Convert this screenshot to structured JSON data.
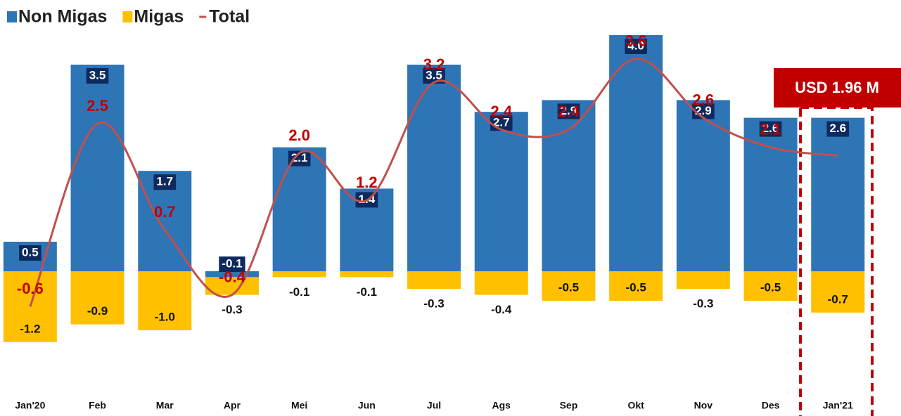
{
  "chart_data": {
    "type": "bar",
    "categories": [
      "Jan'20",
      "Feb",
      "Mar",
      "Apr",
      "Mei",
      "Jun",
      "Jul",
      "Ags",
      "Sep",
      "Okt",
      "Nov",
      "Des",
      "Jan'21"
    ],
    "series": [
      {
        "name": "Non Migas",
        "color": "#2e75b6",
        "kind": "bar",
        "values": [
          0.5,
          3.5,
          1.7,
          -0.1,
          2.1,
          1.4,
          3.5,
          2.7,
          2.9,
          4.0,
          2.9,
          2.6,
          2.6
        ],
        "value_labels": [
          "0.5",
          "3.5",
          "1.7",
          "-0.1",
          "2.1",
          "1.4",
          "3.5",
          "2.7",
          "2.9",
          "4.0",
          "2.9",
          "2.6",
          "2.6"
        ]
      },
      {
        "name": "Migas",
        "color": "#ffc000",
        "kind": "bar",
        "values": [
          -1.2,
          -0.9,
          -1.0,
          -0.3,
          -0.1,
          -0.1,
          -0.3,
          -0.4,
          -0.5,
          -0.5,
          -0.3,
          -0.5,
          -0.7
        ],
        "value_labels": [
          "-1.2",
          "-0.9",
          "-1.0",
          "-0.3",
          "-0.1",
          "-0.1",
          "-0.3",
          "-0.4",
          "-0.5",
          "-0.5",
          "-0.3",
          "-0.5",
          "-0.7"
        ]
      },
      {
        "name": "Total",
        "color": "#c0504d",
        "kind": "line",
        "values": [
          -0.6,
          2.5,
          0.7,
          -0.4,
          2.0,
          1.2,
          3.2,
          2.4,
          2.4,
          3.6,
          2.6,
          2.1,
          1.96
        ],
        "value_labels": [
          "-0.6",
          "2.5",
          "0.7",
          "-0.4",
          "2.0",
          "1.2",
          "3.2",
          "2.4",
          "2.4",
          "3.6",
          "2.6",
          "2.1",
          null
        ]
      }
    ],
    "annotation": "USD 1.96 M",
    "ylim": [
      -2.4,
      4.5
    ]
  }
}
